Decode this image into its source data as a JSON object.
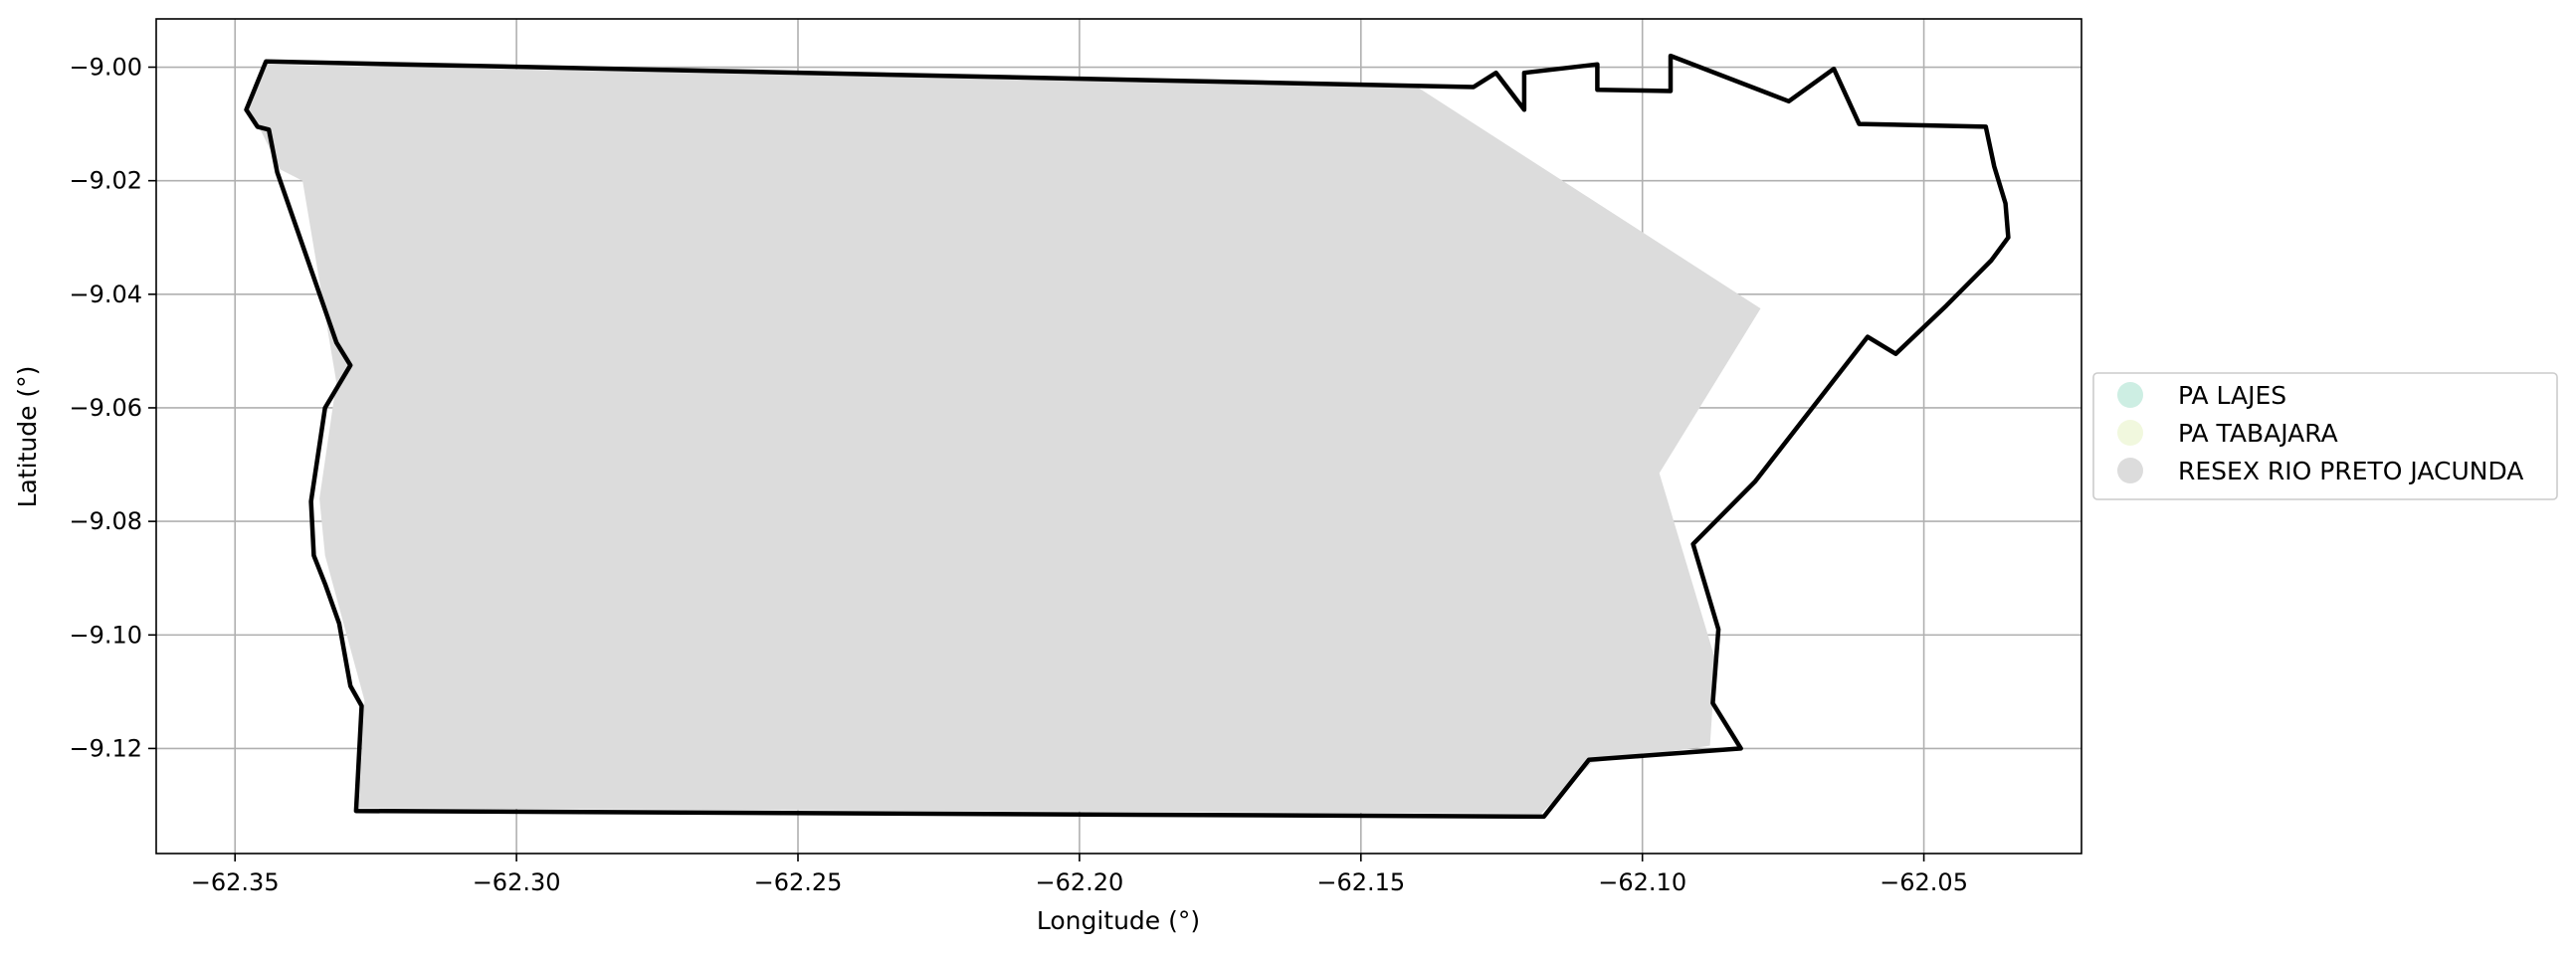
{
  "chart_data": {
    "type": "map",
    "xlabel": "Longitude (°)",
    "ylabel": "Latitude (°)",
    "xlim": [
      -62.364,
      -62.022
    ],
    "ylim": [
      -9.1385,
      -8.9915
    ],
    "grid": true,
    "x_ticks": [
      {
        "value": -62.35,
        "label": "−62.35"
      },
      {
        "value": -62.3,
        "label": "−62.30"
      },
      {
        "value": -62.25,
        "label": "−62.25"
      },
      {
        "value": -62.2,
        "label": "−62.20"
      },
      {
        "value": -62.15,
        "label": "−62.15"
      },
      {
        "value": -62.1,
        "label": "−62.10"
      },
      {
        "value": -62.05,
        "label": "−62.05"
      }
    ],
    "y_ticks": [
      {
        "value": -9.0,
        "label": "−9.00"
      },
      {
        "value": -9.02,
        "label": "−9.02"
      },
      {
        "value": -9.04,
        "label": "−9.04"
      },
      {
        "value": -9.06,
        "label": "−9.06"
      },
      {
        "value": -9.08,
        "label": "−9.08"
      },
      {
        "value": -9.1,
        "label": "−9.10"
      },
      {
        "value": -9.12,
        "label": "−9.12"
      }
    ],
    "legend": {
      "placement": "center-right-outside",
      "entries": [
        {
          "label": "PA LAJES",
          "color": "#cdeee3"
        },
        {
          "label": "PA TABAJARA",
          "color": "#f1f8de"
        },
        {
          "label": "RESEX RIO PRETO JACUNDA",
          "color": "#dcdcdc"
        }
      ]
    },
    "filled_area": {
      "name": "RESEX RIO PRETO JACUNDA",
      "color": "#dcdcdc",
      "coordinates": [
        [
          -62.345,
          -8.9995
        ],
        [
          -62.14,
          -9.0035
        ],
        [
          -62.079,
          -9.0425
        ],
        [
          -62.097,
          -9.0715
        ],
        [
          -62.087,
          -9.1045
        ],
        [
          -62.088,
          -9.1195
        ],
        [
          -62.109,
          -9.1225
        ],
        [
          -62.118,
          -9.1315
        ],
        [
          -62.328,
          -9.1305
        ],
        [
          -62.327,
          -9.1115
        ],
        [
          -62.334,
          -9.086
        ],
        [
          -62.335,
          -9.076
        ],
        [
          -62.332,
          -9.0555
        ],
        [
          -62.338,
          -9.02
        ],
        [
          -62.342,
          -9.018
        ],
        [
          -62.346,
          -9.01
        ],
        [
          -62.348,
          -9.0075
        ]
      ]
    },
    "boundary": {
      "color": "#000000",
      "coordinates": [
        [
          -62.3445,
          -8.999
        ],
        [
          -62.13,
          -9.0035
        ],
        [
          -62.126,
          -9.001
        ],
        [
          -62.121,
          -9.0075
        ],
        [
          -62.121,
          -9.001
        ],
        [
          -62.108,
          -8.9995
        ],
        [
          -62.108,
          -9.004
        ],
        [
          -62.095,
          -9.0042
        ],
        [
          -62.095,
          -8.998
        ],
        [
          -62.074,
          -9.006
        ],
        [
          -62.066,
          -9.0003
        ],
        [
          -62.0615,
          -9.01
        ],
        [
          -62.039,
          -9.0105
        ],
        [
          -62.0375,
          -9.0175
        ],
        [
          -62.0355,
          -9.024
        ],
        [
          -62.035,
          -9.03
        ],
        [
          -62.038,
          -9.034
        ],
        [
          -62.042,
          -9.038
        ],
        [
          -62.046,
          -9.042
        ],
        [
          -62.055,
          -9.0505
        ],
        [
          -62.06,
          -9.0475
        ],
        [
          -62.08,
          -9.073
        ],
        [
          -62.091,
          -9.084
        ],
        [
          -62.0865,
          -9.099
        ],
        [
          -62.0875,
          -9.112
        ],
        [
          -62.0825,
          -9.12
        ],
        [
          -62.1095,
          -9.122
        ],
        [
          -62.1175,
          -9.132
        ],
        [
          -62.3285,
          -9.131
        ],
        [
          -62.3275,
          -9.1125
        ],
        [
          -62.3295,
          -9.109
        ],
        [
          -62.3315,
          -9.098
        ],
        [
          -62.334,
          -9.091
        ],
        [
          -62.336,
          -9.086
        ],
        [
          -62.3365,
          -9.0765
        ],
        [
          -62.334,
          -9.06
        ],
        [
          -62.3295,
          -9.0525
        ],
        [
          -62.332,
          -9.0485
        ],
        [
          -62.3425,
          -9.0185
        ],
        [
          -62.344,
          -9.011
        ],
        [
          -62.346,
          -9.0105
        ],
        [
          -62.348,
          -9.0075
        ]
      ]
    }
  }
}
